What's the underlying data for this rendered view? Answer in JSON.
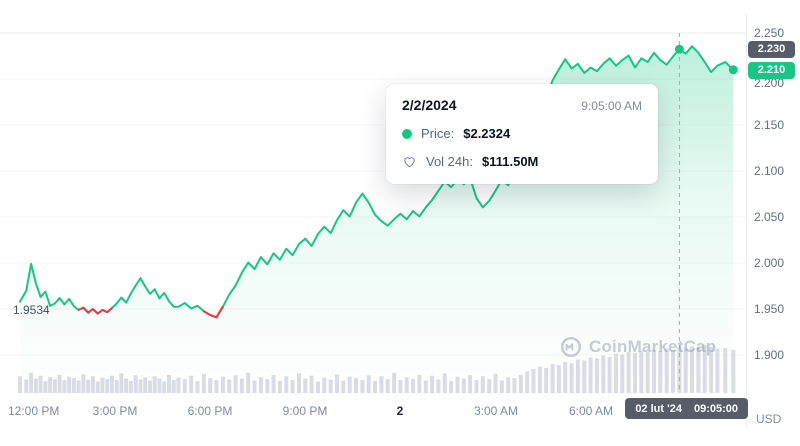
{
  "axis": {
    "y_ticks": [
      "2.250",
      "2.200",
      "2.150",
      "2.100",
      "2.050",
      "2.000",
      "1.950",
      "1.900"
    ],
    "y_tick_values": [
      2.25,
      2.2,
      2.15,
      2.1,
      2.05,
      2.0,
      1.95,
      1.9
    ],
    "x_ticks": [
      {
        "label": "12:00 PM",
        "t": 0,
        "align": "left"
      },
      {
        "label": "3:00 PM",
        "t": 3
      },
      {
        "label": "6:00 PM",
        "t": 6
      },
      {
        "label": "9:00 PM",
        "t": 9
      },
      {
        "label": "2",
        "t": 12,
        "bold": true
      },
      {
        "label": "3:00 AM",
        "t": 15
      },
      {
        "label": "6:00 AM",
        "t": 18
      }
    ],
    "unit_label": "USD"
  },
  "badges": {
    "hover_price": "2.230",
    "hover_price_value": 2.2324,
    "last_price": "2.210",
    "last_price_value": 2.21,
    "hover_date": "02 lut '24",
    "hover_clock": "09:05:00"
  },
  "tooltip": {
    "date": "2/2/2024",
    "time": "9:05:00 AM",
    "price_label": "Price:",
    "price_value": "$2.2324",
    "vol_label": "Vol 24h:",
    "vol_value": "$111.50M"
  },
  "annotations": {
    "open_label": "1.9534",
    "open_value": 1.9534
  },
  "watermark": {
    "text": "CoinMarketCap"
  },
  "colors": {
    "up": "#16c784",
    "down": "#ea3943",
    "volume_bar": "#d8dce5",
    "badge_dark": "#565d69",
    "badge_green": "#16c784",
    "crosshair": "#a0aabe"
  },
  "chart_data": {
    "type": "line",
    "title": "",
    "series_name": "Price (USD)",
    "x_unit": "hours since 12:00 PM, Feb 1 2024",
    "ylim": [
      1.88,
      2.26
    ],
    "y_ticks": [
      2.25,
      2.2,
      2.15,
      2.1,
      2.05,
      2.0,
      1.95,
      1.9
    ],
    "hover_index": 112,
    "hover_point": {
      "time": "9:05:00 AM",
      "price": 2.2324,
      "vol_24h": "$111.50M"
    },
    "last_price": 2.21,
    "points": [
      [
        0,
        1.958
      ],
      [
        0.2,
        1.97
      ],
      [
        0.35,
        1.999
      ],
      [
        0.5,
        1.978
      ],
      [
        0.65,
        1.963
      ],
      [
        0.8,
        1.969
      ],
      [
        0.95,
        1.9534
      ],
      [
        1.1,
        1.956
      ],
      [
        1.25,
        1.962
      ],
      [
        1.4,
        1.955
      ],
      [
        1.55,
        1.961
      ],
      [
        1.7,
        1.953
      ],
      [
        1.85,
        1.949
      ],
      [
        2,
        1.9515
      ],
      [
        2.15,
        1.946
      ],
      [
        2.3,
        1.95
      ],
      [
        2.45,
        1.945
      ],
      [
        2.6,
        1.949
      ],
      [
        2.75,
        1.9465
      ],
      [
        2.9,
        1.951
      ],
      [
        3.05,
        1.956
      ],
      [
        3.2,
        1.9625
      ],
      [
        3.35,
        1.957
      ],
      [
        3.5,
        1.967
      ],
      [
        3.65,
        1.9755
      ],
      [
        3.8,
        1.9835
      ],
      [
        3.95,
        1.9745
      ],
      [
        4.1,
        1.9665
      ],
      [
        4.25,
        1.9715
      ],
      [
        4.4,
        1.9615
      ],
      [
        4.55,
        1.9675
      ],
      [
        4.7,
        1.9585
      ],
      [
        4.85,
        1.9525
      ],
      [
        5,
        1.9525
      ],
      [
        5.2,
        1.9565
      ],
      [
        5.4,
        1.9505
      ],
      [
        5.6,
        1.9535
      ],
      [
        5.8,
        1.9475
      ],
      [
        6,
        1.9435
      ],
      [
        6.2,
        1.941
      ],
      [
        6.4,
        1.9525
      ],
      [
        6.6,
        1.9655
      ],
      [
        6.8,
        1.9755
      ],
      [
        7,
        1.9895
      ],
      [
        7.2,
        2.0005
      ],
      [
        7.4,
        1.9935
      ],
      [
        7.6,
        2.0065
      ],
      [
        7.8,
        1.9985
      ],
      [
        8,
        2.0105
      ],
      [
        8.2,
        2.0035
      ],
      [
        8.4,
        2.0155
      ],
      [
        8.6,
        2.0085
      ],
      [
        8.8,
        2.0205
      ],
      [
        9,
        2.0265
      ],
      [
        9.2,
        2.0185
      ],
      [
        9.4,
        2.0315
      ],
      [
        9.6,
        2.0395
      ],
      [
        9.8,
        2.0325
      ],
      [
        10,
        2.0465
      ],
      [
        10.2,
        2.0575
      ],
      [
        10.4,
        2.0505
      ],
      [
        10.6,
        2.0655
      ],
      [
        10.8,
        2.0755
      ],
      [
        11,
        2.0655
      ],
      [
        11.2,
        2.0525
      ],
      [
        11.4,
        2.0455
      ],
      [
        11.6,
        2.0405
      ],
      [
        11.8,
        2.0475
      ],
      [
        12,
        2.0535
      ],
      [
        12.2,
        2.0475
      ],
      [
        12.4,
        2.0565
      ],
      [
        12.6,
        2.0505
      ],
      [
        12.8,
        2.0605
      ],
      [
        13,
        2.0685
      ],
      [
        13.2,
        2.0785
      ],
      [
        13.4,
        2.0885
      ],
      [
        13.6,
        2.0825
      ],
      [
        13.8,
        2.0905
      ],
      [
        14,
        2.0855
      ],
      [
        14.2,
        2.0925
      ],
      [
        14.4,
        2.0705
      ],
      [
        14.6,
        2.0605
      ],
      [
        14.8,
        2.0675
      ],
      [
        15,
        2.0785
      ],
      [
        15.2,
        2.0905
      ],
      [
        15.4,
        2.0845
      ],
      [
        15.6,
        2.0965
      ],
      [
        15.8,
        2.1045
      ],
      [
        16,
        2.1125
      ],
      [
        16.2,
        2.1305
      ],
      [
        16.4,
        2.1555
      ],
      [
        16.6,
        2.1795
      ],
      [
        16.8,
        2.1985
      ],
      [
        17,
        2.2105
      ],
      [
        17.2,
        2.2215
      ],
      [
        17.4,
        2.2115
      ],
      [
        17.6,
        2.2165
      ],
      [
        17.8,
        2.2065
      ],
      [
        18,
        2.2125
      ],
      [
        18.2,
        2.2085
      ],
      [
        18.4,
        2.2165
      ],
      [
        18.6,
        2.2225
      ],
      [
        18.8,
        2.2145
      ],
      [
        19,
        2.2205
      ],
      [
        19.2,
        2.2255
      ],
      [
        19.4,
        2.2125
      ],
      [
        19.6,
        2.2225
      ],
      [
        19.8,
        2.2185
      ],
      [
        20,
        2.2285
      ],
      [
        20.2,
        2.2205
      ],
      [
        20.4,
        2.2155
      ],
      [
        20.6,
        2.2245
      ],
      [
        20.8,
        2.2324
      ],
      [
        21,
        2.2275
      ],
      [
        21.2,
        2.2355
      ],
      [
        21.4,
        2.2285
      ],
      [
        21.6,
        2.2185
      ],
      [
        21.8,
        2.2075
      ],
      [
        22,
        2.2145
      ],
      [
        22.25,
        2.2185
      ],
      [
        22.5,
        2.21
      ]
    ],
    "red_segments": [
      [
        12,
        19
      ],
      [
        37,
        40
      ]
    ],
    "volume": [
      0.35,
      0.28,
      0.42,
      0.3,
      0.36,
      0.25,
      0.33,
      0.29,
      0.38,
      0.27,
      0.34,
      0.31,
      0.26,
      0.39,
      0.28,
      0.35,
      0.24,
      0.32,
      0.29,
      0.36,
      0.27,
      0.41,
      0.3,
      0.25,
      0.37,
      0.28,
      0.33,
      0.26,
      0.35,
      0.3,
      0.24,
      0.38,
      0.27,
      0.32,
      0.29,
      0.36,
      0.25,
      0.4,
      0.31,
      0.27,
      0.34,
      0.28,
      0.37,
      0.3,
      0.42,
      0.26,
      0.33,
      0.29,
      0.38,
      0.25,
      0.35,
      0.27,
      0.41,
      0.3,
      0.36,
      0.24,
      0.32,
      0.28,
      0.39,
      0.26,
      0.34,
      0.31,
      0.27,
      0.37,
      0.25,
      0.35,
      0.29,
      0.42,
      0.27,
      0.33,
      0.3,
      0.38,
      0.26,
      0.36,
      0.28,
      0.41,
      0.25,
      0.34,
      0.3,
      0.37,
      0.27,
      0.35,
      0.29,
      0.4,
      0.26,
      0.33,
      0.31,
      0.38,
      0.45,
      0.5,
      0.55,
      0.52,
      0.6,
      0.58,
      0.65,
      0.62,
      0.7,
      0.68,
      0.74,
      0.72,
      0.78,
      0.75,
      0.82,
      0.8,
      0.85,
      0.83,
      0.88,
      0.86,
      0.9,
      0.88,
      0.92,
      0.9,
      0.95,
      0.93,
      0.97,
      0.95,
      1.0,
      0.96,
      0.92,
      0.94,
      0.9
    ]
  }
}
